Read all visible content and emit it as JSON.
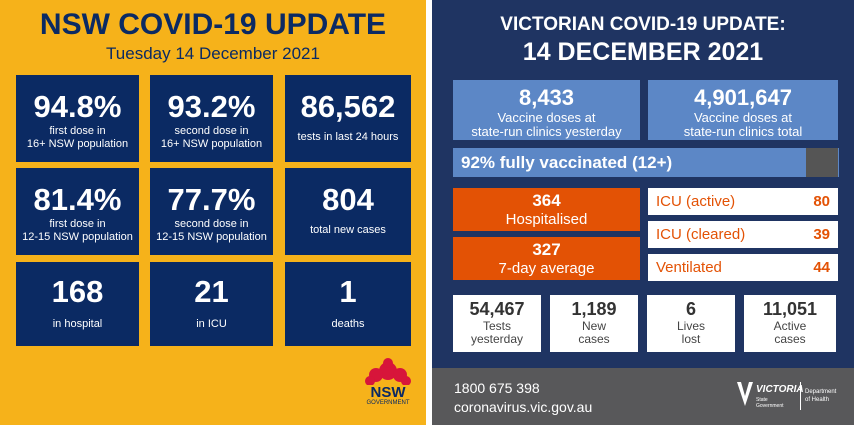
{
  "nsw": {
    "title": "NSW COVID-19 UPDATE",
    "date": "Tuesday 14 December 2021",
    "tiles": [
      {
        "value": "94.8%",
        "label": [
          "first dose in",
          "16+ NSW population"
        ]
      },
      {
        "value": "93.2%",
        "label": [
          "second dose in",
          "16+ NSW population"
        ]
      },
      {
        "value": "86,562",
        "label": [
          "tests in last 24 hours"
        ]
      },
      {
        "value": "81.4%",
        "label": [
          "first dose in",
          "12-15 NSW population"
        ]
      },
      {
        "value": "77.7%",
        "label": [
          "second dose in",
          "12-15 NSW population"
        ]
      },
      {
        "value": "804",
        "label": [
          "total new cases"
        ]
      },
      {
        "value": "168",
        "label": [
          "in hospital"
        ]
      },
      {
        "value": "21",
        "label": [
          "in ICU"
        ]
      },
      {
        "value": "1",
        "label": [
          "deaths"
        ]
      }
    ],
    "logo": {
      "name": "NSW",
      "sub": "GOVERNMENT"
    }
  },
  "vic": {
    "title": "VICTORIAN COVID-19 UPDATE:",
    "date": "14 DECEMBER 2021",
    "vaccine": [
      {
        "value": "8,433",
        "label": [
          "Vaccine doses at",
          "state-run clinics yesterday"
        ]
      },
      {
        "value": "4,901,647",
        "label": [
          "Vaccine doses at",
          "state-run clinics total"
        ]
      }
    ],
    "vaccinated": "92% fully vaccinated (12+)",
    "hospital": [
      {
        "value": "364",
        "label": "Hospitalised"
      },
      {
        "value": "327",
        "label": "7-day average"
      }
    ],
    "icu": [
      {
        "label": "ICU (active)",
        "value": "80"
      },
      {
        "label": "ICU (cleared)",
        "value": "39"
      },
      {
        "label": "Ventilated",
        "value": "44"
      }
    ],
    "stats": [
      {
        "value": "54,467",
        "label": [
          "Tests",
          "yesterday"
        ]
      },
      {
        "value": "1,189",
        "label": [
          "New",
          "cases"
        ]
      },
      {
        "value": "6",
        "label": [
          "Lives",
          "lost"
        ]
      },
      {
        "value": "11,051",
        "label": [
          "Active",
          "cases"
        ]
      }
    ],
    "footer": {
      "phone": "1800 675 398",
      "url": "coronavirus.vic.gov.au"
    },
    "logo": {
      "name": "VICTORIA",
      "sub": [
        "State",
        "Government"
      ],
      "dept": [
        "Department",
        "of Health"
      ]
    }
  }
}
